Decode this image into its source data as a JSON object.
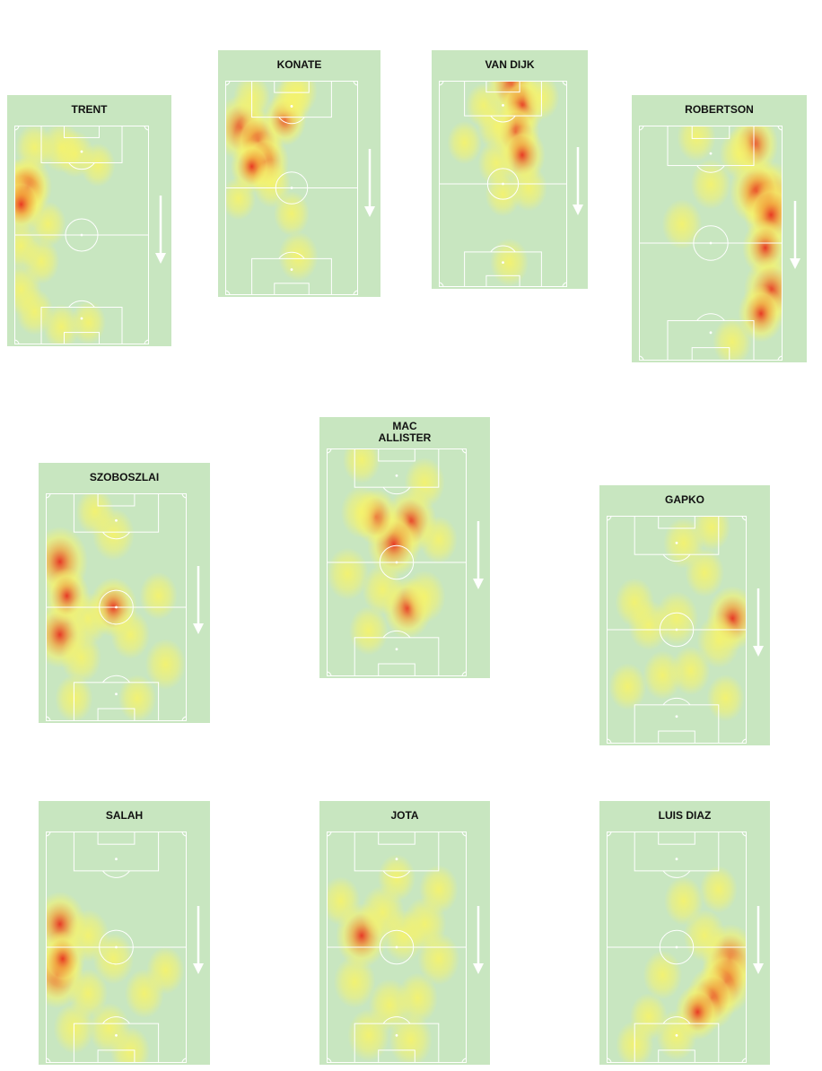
{
  "colors": {
    "pitch": "#c8e6c0",
    "lines": "#ffffff",
    "heat_low": "#f6f36a",
    "heat_mid": "#f3a13a",
    "heat_high": "#e8311e"
  },
  "players": [
    {
      "name": "TRENT",
      "blobs": [
        [
          0.05,
          0.3,
          1.0
        ],
        [
          0.1,
          0.28,
          0.8
        ],
        [
          0.05,
          0.36,
          0.7
        ],
        [
          0.15,
          0.1,
          0.4
        ],
        [
          0.35,
          0.1,
          0.5
        ],
        [
          0.45,
          0.13,
          0.4
        ],
        [
          0.05,
          0.55,
          0.4
        ],
        [
          0.05,
          0.75,
          0.5
        ],
        [
          0.15,
          0.85,
          0.4
        ],
        [
          0.2,
          0.62,
          0.35
        ],
        [
          0.35,
          0.92,
          0.35
        ],
        [
          0.55,
          0.9,
          0.3
        ],
        [
          0.25,
          0.45,
          0.35
        ],
        [
          0.62,
          0.18,
          0.3
        ]
      ]
    },
    {
      "name": "KONATE",
      "blobs": [
        [
          0.12,
          0.22,
          1.0
        ],
        [
          0.25,
          0.28,
          0.85
        ],
        [
          0.3,
          0.38,
          0.8
        ],
        [
          0.2,
          0.4,
          0.6
        ],
        [
          0.45,
          0.18,
          0.6
        ],
        [
          0.5,
          0.1,
          0.5
        ],
        [
          0.55,
          0.05,
          0.45
        ],
        [
          0.2,
          0.08,
          0.4
        ],
        [
          0.35,
          0.48,
          0.45
        ],
        [
          0.5,
          0.62,
          0.35
        ],
        [
          0.55,
          0.82,
          0.5
        ],
        [
          0.1,
          0.55,
          0.3
        ]
      ]
    },
    {
      "name": "VAN DIJK",
      "blobs": [
        [
          0.57,
          0.02,
          1.0
        ],
        [
          0.65,
          0.12,
          0.8
        ],
        [
          0.6,
          0.25,
          0.85
        ],
        [
          0.65,
          0.36,
          0.8
        ],
        [
          0.45,
          0.22,
          0.5
        ],
        [
          0.35,
          0.12,
          0.4
        ],
        [
          0.45,
          0.4,
          0.45
        ],
        [
          0.7,
          0.52,
          0.45
        ],
        [
          0.5,
          0.55,
          0.4
        ],
        [
          0.55,
          0.88,
          0.5
        ],
        [
          0.8,
          0.08,
          0.4
        ],
        [
          0.2,
          0.3,
          0.35
        ]
      ]
    },
    {
      "name": "ROBERTSON",
      "blobs": [
        [
          0.9,
          0.3,
          1.0
        ],
        [
          0.82,
          0.28,
          0.9
        ],
        [
          0.92,
          0.38,
          0.85
        ],
        [
          0.8,
          0.08,
          0.7
        ],
        [
          0.88,
          0.52,
          0.6
        ],
        [
          0.92,
          0.7,
          0.9
        ],
        [
          0.85,
          0.8,
          0.6
        ],
        [
          0.5,
          0.25,
          0.4
        ],
        [
          0.3,
          0.42,
          0.4
        ],
        [
          0.65,
          0.92,
          0.35
        ],
        [
          0.7,
          0.12,
          0.4
        ],
        [
          0.4,
          0.05,
          0.35
        ]
      ]
    },
    {
      "name": "SZOBOSZLAI",
      "blobs": [
        [
          0.1,
          0.3,
          1.0
        ],
        [
          0.1,
          0.62,
          0.9
        ],
        [
          0.15,
          0.45,
          0.6
        ],
        [
          0.48,
          0.5,
          0.7
        ],
        [
          0.48,
          0.18,
          0.5
        ],
        [
          0.3,
          0.55,
          0.5
        ],
        [
          0.25,
          0.72,
          0.45
        ],
        [
          0.6,
          0.62,
          0.4
        ],
        [
          0.8,
          0.45,
          0.35
        ],
        [
          0.85,
          0.75,
          0.45
        ],
        [
          0.2,
          0.9,
          0.35
        ],
        [
          0.65,
          0.9,
          0.35
        ],
        [
          0.35,
          0.08,
          0.35
        ]
      ]
    },
    {
      "name": "MAC\nALLISTER",
      "blobs": [
        [
          0.6,
          0.32,
          0.85
        ],
        [
          0.48,
          0.42,
          0.9
        ],
        [
          0.35,
          0.3,
          0.6
        ],
        [
          0.25,
          0.28,
          0.5
        ],
        [
          0.58,
          0.7,
          0.75
        ],
        [
          0.7,
          0.65,
          0.5
        ],
        [
          0.15,
          0.55,
          0.5
        ],
        [
          0.4,
          0.62,
          0.45
        ],
        [
          0.3,
          0.8,
          0.4
        ],
        [
          0.7,
          0.15,
          0.45
        ],
        [
          0.8,
          0.4,
          0.35
        ],
        [
          0.25,
          0.05,
          0.35
        ]
      ]
    },
    {
      "name": "GAPKO",
      "blobs": [
        [
          0.9,
          0.45,
          0.85
        ],
        [
          0.8,
          0.55,
          0.55
        ],
        [
          0.5,
          0.45,
          0.55
        ],
        [
          0.3,
          0.48,
          0.45
        ],
        [
          0.55,
          0.12,
          0.45
        ],
        [
          0.7,
          0.25,
          0.4
        ],
        [
          0.2,
          0.38,
          0.4
        ],
        [
          0.6,
          0.68,
          0.4
        ],
        [
          0.4,
          0.7,
          0.4
        ],
        [
          0.85,
          0.8,
          0.35
        ],
        [
          0.15,
          0.75,
          0.35
        ],
        [
          0.75,
          0.05,
          0.35
        ]
      ]
    },
    {
      "name": "SALAH",
      "blobs": [
        [
          0.1,
          0.4,
          0.85
        ],
        [
          0.08,
          0.62,
          0.9
        ],
        [
          0.12,
          0.55,
          0.6
        ],
        [
          0.3,
          0.45,
          0.5
        ],
        [
          0.48,
          0.55,
          0.45
        ],
        [
          0.2,
          0.85,
          0.45
        ],
        [
          0.45,
          0.85,
          0.45
        ],
        [
          0.7,
          0.7,
          0.4
        ],
        [
          0.85,
          0.6,
          0.35
        ],
        [
          0.6,
          0.95,
          0.4
        ],
        [
          0.3,
          0.7,
          0.4
        ]
      ]
    },
    {
      "name": "JOTA",
      "blobs": [
        [
          0.25,
          0.45,
          0.85
        ],
        [
          0.4,
          0.35,
          0.55
        ],
        [
          0.55,
          0.45,
          0.5
        ],
        [
          0.7,
          0.4,
          0.55
        ],
        [
          0.8,
          0.55,
          0.5
        ],
        [
          0.2,
          0.65,
          0.5
        ],
        [
          0.45,
          0.75,
          0.5
        ],
        [
          0.65,
          0.72,
          0.45
        ],
        [
          0.3,
          0.88,
          0.5
        ],
        [
          0.6,
          0.9,
          0.55
        ],
        [
          0.1,
          0.3,
          0.4
        ],
        [
          0.8,
          0.25,
          0.4
        ],
        [
          0.5,
          0.2,
          0.35
        ]
      ]
    },
    {
      "name": "LUIS DIAZ",
      "blobs": [
        [
          0.88,
          0.55,
          1.0
        ],
        [
          0.85,
          0.65,
          0.9
        ],
        [
          0.75,
          0.72,
          0.8
        ],
        [
          0.65,
          0.78,
          0.6
        ],
        [
          0.7,
          0.45,
          0.5
        ],
        [
          0.55,
          0.3,
          0.4
        ],
        [
          0.4,
          0.62,
          0.4
        ],
        [
          0.5,
          0.88,
          0.45
        ],
        [
          0.3,
          0.8,
          0.35
        ],
        [
          0.8,
          0.25,
          0.35
        ],
        [
          0.2,
          0.92,
          0.35
        ]
      ]
    }
  ]
}
